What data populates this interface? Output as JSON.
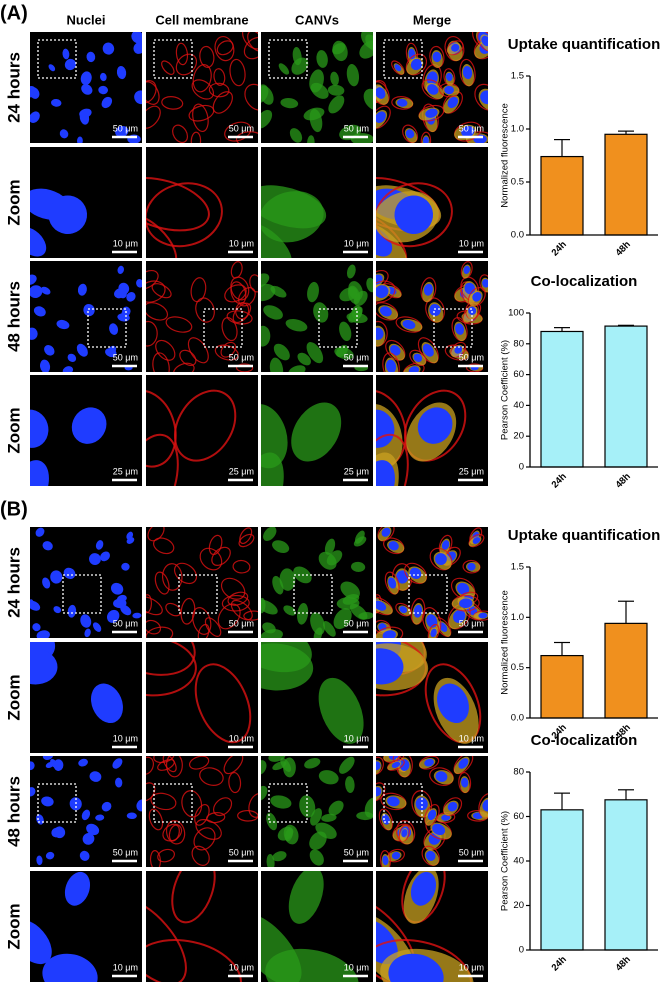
{
  "panels": [
    {
      "label": "(A)",
      "columns": [
        "Nuclei",
        "Cell membrane",
        "CANVs",
        "Merge"
      ],
      "rows": [
        {
          "label": "24 hours",
          "scale_bar": "50 μm"
        },
        {
          "label": "Zoom",
          "scale_bar": "10 μm"
        },
        {
          "label": "48 hours",
          "scale_bar": "50 μm"
        },
        {
          "label": "Zoom",
          "scale_bar": "25 μm"
        }
      ]
    },
    {
      "label": "(B)",
      "rows": [
        {
          "label": "24 hours",
          "scale_bar": "50 μm"
        },
        {
          "label": "Zoom",
          "scale_bar": "10 μm"
        },
        {
          "label": "48 hours",
          "scale_bar": "50 μm"
        },
        {
          "label": "Zoom",
          "scale_bar": "10 μm"
        }
      ]
    }
  ],
  "chart_data": [
    {
      "type": "bar",
      "title": "Uptake quantification",
      "y_label": "Normalized fluorescence",
      "categories": [
        "24h",
        "48h"
      ],
      "values": [
        0.74,
        0.95
      ],
      "errors": [
        0.16,
        0.03
      ],
      "color": "#f0901e",
      "ylim": [
        0,
        1.5
      ],
      "yticks": [
        {
          "value": 0,
          "label": "0.0"
        },
        0.5,
        {
          "value": 1,
          "label": "1.0"
        },
        1.5
      ]
    },
    {
      "type": "bar",
      "title": "Co-localization",
      "y_label": "Pearson Coefficient (%)",
      "categories": [
        "24h",
        "48h"
      ],
      "values": [
        88,
        91.5
      ],
      "errors": [
        2.5,
        0.5
      ],
      "color": "#a6f0f8",
      "ylim": [
        0,
        100
      ],
      "yticks": [
        0,
        20,
        40,
        60,
        80,
        100
      ]
    },
    {
      "type": "bar",
      "title": "Uptake quantification",
      "y_label": "Normalized fluorescence",
      "categories": [
        "24h",
        "48h"
      ],
      "values": [
        0.62,
        0.94
      ],
      "errors": [
        0.13,
        0.22
      ],
      "color": "#f0901e",
      "ylim": [
        0,
        1.5
      ],
      "yticks": [
        {
          "value": 0,
          "label": "0.0"
        },
        0.5,
        {
          "value": 1,
          "label": "1.0"
        },
        1.5
      ]
    },
    {
      "type": "bar",
      "title": "Co-localization",
      "y_label": "Pearson Coefficient (%)",
      "categories": [
        "24h",
        "48h"
      ],
      "values": [
        63,
        67.5
      ],
      "errors": [
        7.5,
        4.5
      ],
      "color": "#a6f0f8",
      "ylim": [
        0,
        80
      ],
      "yticks": [
        0,
        20,
        40,
        60,
        80
      ]
    }
  ]
}
